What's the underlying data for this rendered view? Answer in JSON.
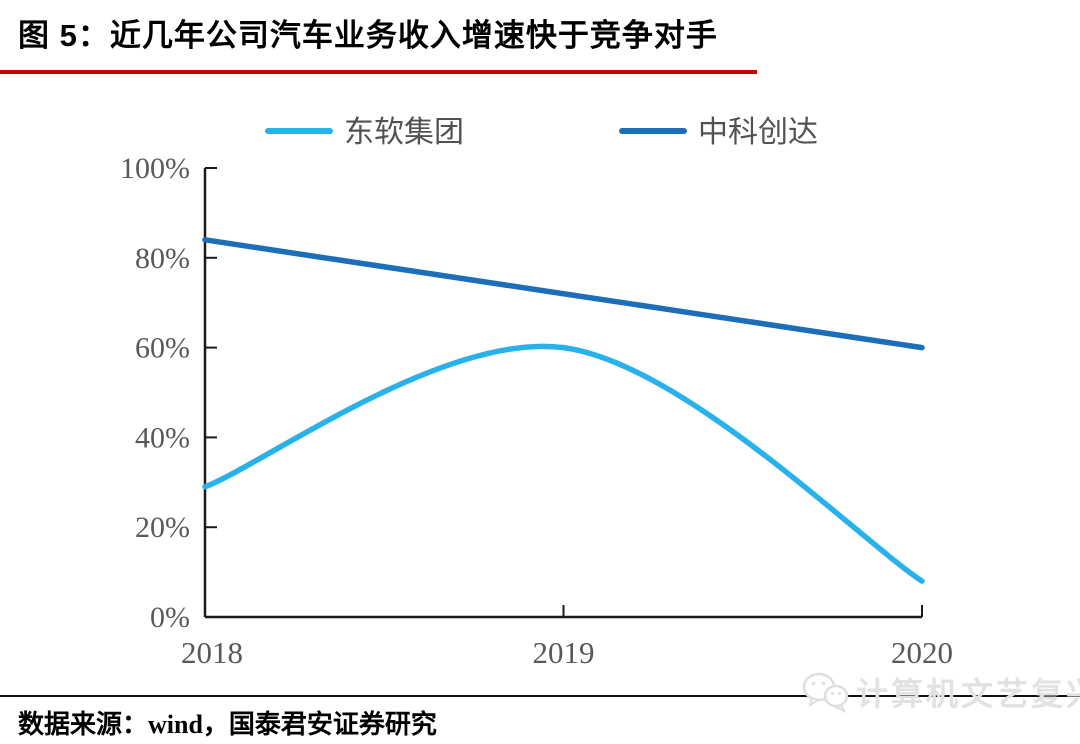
{
  "header": {
    "title": "图 5：近几年公司汽车业务收入增速快于竞争对手",
    "accent_color": "#c00000"
  },
  "chart_data": {
    "type": "line",
    "title": "近几年公司汽车业务收入增速快于竞争对手",
    "categories": [
      "2018",
      "2019",
      "2020"
    ],
    "series": [
      {
        "name": "东软集团",
        "color": "#29b2ea",
        "values": [
          29,
          60,
          8
        ]
      },
      {
        "name": "中科创达",
        "color": "#1d6eb8",
        "values": [
          84,
          72,
          60
        ]
      }
    ],
    "xlabel": "",
    "ylabel": "",
    "ylim": [
      0,
      100
    ],
    "y_ticks": [
      "0%",
      "20%",
      "40%",
      "60%",
      "80%",
      "100%"
    ],
    "y_tick_values": [
      0,
      20,
      40,
      60,
      80,
      100
    ],
    "smooth": true,
    "grid": false,
    "legend_position": "top",
    "axis_color": "#1a1a1a",
    "tick_label_color": "#595959",
    "legend_label_color": "#525252"
  },
  "footer": {
    "source": "数据来源：wind，国泰君安证券研究",
    "watermark": "计算机文艺复兴",
    "watermark_icon": "wechat-icon"
  }
}
